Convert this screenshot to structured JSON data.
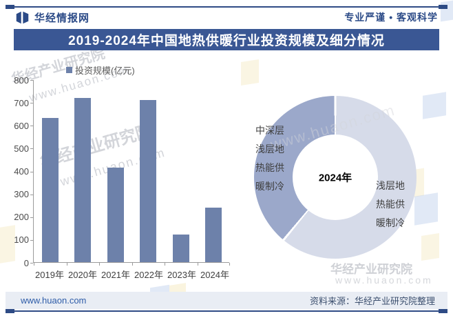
{
  "header": {
    "brand": "华经情报网",
    "slogan": "专业严谨 • 客观科学"
  },
  "title": "2019-2024年中国地热供暖行业投资规模及细分情况",
  "chart_data": [
    {
      "type": "bar",
      "title": "投资规模(亿元)",
      "legend_position": "top",
      "categories": [
        "2019年",
        "2020年",
        "2021年",
        "2022年",
        "2023年",
        "2024年"
      ],
      "values": [
        630,
        720,
        415,
        710,
        120,
        240
      ],
      "unit": "亿元",
      "ylabel": "",
      "xlabel": "",
      "ylim": [
        0,
        800
      ],
      "ytick_step": 100,
      "grid": false,
      "bar_color": "#6d81aa"
    },
    {
      "type": "pie",
      "donut": true,
      "center_label": "2024年",
      "labels": [
        "浅层地热能供暖制冷",
        "中深层浅层地热能供暖制冷"
      ],
      "values_pct": [
        61,
        39
      ],
      "values_estimated_from_arc": true,
      "colors": [
        "#d6dbe9",
        "#9ba8ca"
      ],
      "start_angle_deg": 0,
      "legend_position": "none"
    }
  ],
  "donut_labels": {
    "left": "中深层浅层地热能供暖制冷",
    "right": "浅层地热能供暖制冷",
    "center": "2024年"
  },
  "footer": {
    "site": "www.huaon.com",
    "source": "资料来源：华经产业研究院整理"
  },
  "watermark": {
    "brand": "华经产业研究院",
    "site": "www.huaon.com"
  },
  "colors": {
    "title_bar": "#3a5794",
    "accent_line": "#2e4b85",
    "brand_text": "#2b4a87",
    "bar": "#6d81aa",
    "donut_dark": "#9ba8ca",
    "donut_light": "#d6dbe9",
    "footer_bg": "#e9edf4"
  }
}
